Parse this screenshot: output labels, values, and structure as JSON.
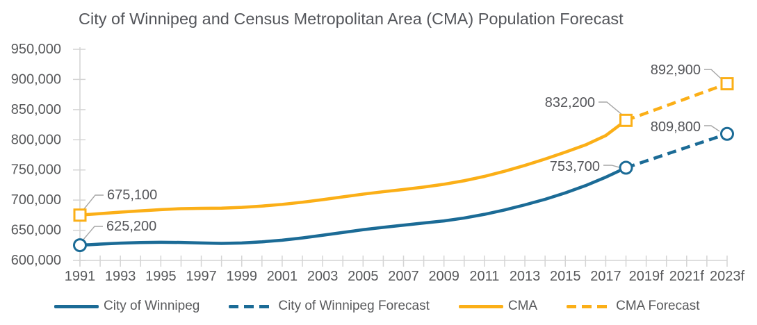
{
  "title": "City of Winnipeg and Census Metropolitan Area (CMA) Population Forecast",
  "colors": {
    "winnipeg_blue": "#1B6B96",
    "cma_yellow": "#FBAF17",
    "axis_gray": "#D4D4D4",
    "text_gray": "#58595B",
    "leader_gray": "#A6A6A6"
  },
  "chart_data": {
    "type": "line",
    "x_axis": {
      "range": [
        1991,
        2023
      ],
      "tick_every_year": true,
      "labels": [
        {
          "year": 1991,
          "text": "1991"
        },
        {
          "year": 1993,
          "text": "1993"
        },
        {
          "year": 1995,
          "text": "1995"
        },
        {
          "year": 1997,
          "text": "1997"
        },
        {
          "year": 1999,
          "text": "1999"
        },
        {
          "year": 2001,
          "text": "2001"
        },
        {
          "year": 2003,
          "text": "2003"
        },
        {
          "year": 2005,
          "text": "2005"
        },
        {
          "year": 2007,
          "text": "2007"
        },
        {
          "year": 2009,
          "text": "2009"
        },
        {
          "year": 2011,
          "text": "2011"
        },
        {
          "year": 2013,
          "text": "2013"
        },
        {
          "year": 2015,
          "text": "2015"
        },
        {
          "year": 2017,
          "text": "2017"
        },
        {
          "year": 2019,
          "text": "2019f"
        },
        {
          "year": 2021,
          "text": "2021f"
        },
        {
          "year": 2023,
          "text": "2023f"
        }
      ]
    },
    "y_axis": {
      "range": [
        600000,
        950000
      ],
      "ticks": [
        {
          "value": 950000,
          "text": "950,000"
        },
        {
          "value": 900000,
          "text": "900,000"
        },
        {
          "value": 850000,
          "text": "850,000"
        },
        {
          "value": 800000,
          "text": "800,000"
        },
        {
          "value": 750000,
          "text": "750,000"
        },
        {
          "value": 700000,
          "text": "700,000"
        },
        {
          "value": 650000,
          "text": "650,000"
        },
        {
          "value": 600000,
          "text": "600,000"
        }
      ]
    },
    "series": [
      {
        "id": "winnipeg",
        "name": "City of Winnipeg",
        "style": "solid",
        "marker": "circle",
        "color": "#1B6B96",
        "start_year": 1991,
        "values": [
          625200,
          627000,
          628600,
          629700,
          630100,
          629800,
          628900,
          628200,
          628900,
          630800,
          633500,
          637300,
          641700,
          646300,
          650900,
          654800,
          658400,
          662000,
          665500,
          670300,
          676400,
          683700,
          692100,
          701300,
          712000,
          724000,
          738000,
          753700
        ]
      },
      {
        "id": "winnipeg_forecast",
        "name": "City of Winnipeg Forecast",
        "style": "dashed",
        "marker": "circle",
        "color": "#1B6B96",
        "start_year": 2018,
        "values": [
          753700,
          764900,
          776100,
          787400,
          798600,
          809800
        ]
      },
      {
        "id": "cma",
        "name": "CMA",
        "style": "solid",
        "marker": "square",
        "color": "#FBAF17",
        "start_year": 1991,
        "values": [
          675100,
          677600,
          680000,
          682200,
          684200,
          685800,
          686300,
          686700,
          687900,
          690100,
          692900,
          696500,
          700700,
          705300,
          709900,
          713900,
          717600,
          721600,
          726300,
          732100,
          739300,
          747900,
          757500,
          768100,
          779500,
          791500,
          807000,
          832200
        ]
      },
      {
        "id": "cma_forecast",
        "name": "CMA Forecast",
        "style": "dashed",
        "marker": "square",
        "color": "#FBAF17",
        "start_year": 2018,
        "values": [
          832200,
          844300,
          856500,
          868600,
          880800,
          892900
        ]
      }
    ],
    "annotations": [
      {
        "series": "cma",
        "year": 1991,
        "label": "675,100"
      },
      {
        "series": "winnipeg",
        "year": 1991,
        "label": "625,200"
      },
      {
        "series": "cma",
        "year": 2018,
        "label": "832,200"
      },
      {
        "series": "winnipeg",
        "year": 2018,
        "label": "753,700"
      },
      {
        "series": "cma_forecast",
        "year": 2023,
        "label": "892,900"
      },
      {
        "series": "winnipeg_forecast",
        "year": 2023,
        "label": "809,800"
      }
    ]
  },
  "legend": {
    "items": [
      {
        "label": "City of Winnipeg",
        "style": "solid",
        "color": "#1B6B96"
      },
      {
        "label": "City of Winnipeg Forecast",
        "style": "dashed",
        "color": "#1B6B96"
      },
      {
        "label": "CMA",
        "style": "solid",
        "color": "#FBAF17"
      },
      {
        "label": "CMA Forecast",
        "style": "dashed",
        "color": "#FBAF17"
      }
    ]
  }
}
